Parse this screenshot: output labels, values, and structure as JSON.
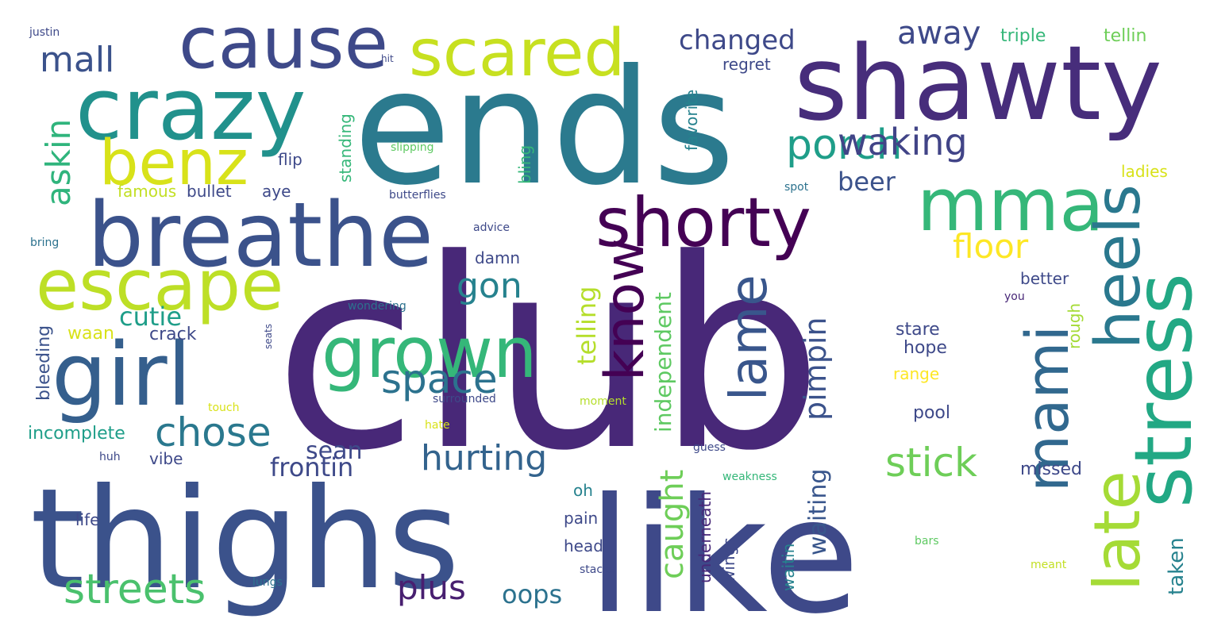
{
  "words": [
    {
      "text": "club",
      "weight": 1.0,
      "color": "#482878"
    },
    {
      "text": "ends",
      "weight": 0.62,
      "color": "#2b7a8e"
    },
    {
      "text": "like",
      "weight": 0.62,
      "color": "#3e4989"
    },
    {
      "text": "thighs",
      "weight": 0.55,
      "color": "#3b528b"
    },
    {
      "text": "shawty",
      "weight": 0.47,
      "color": "#472d7b"
    },
    {
      "text": "breathe",
      "weight": 0.4,
      "color": "#3b528b"
    },
    {
      "text": "girl",
      "weight": 0.38,
      "color": "#355f8d"
    },
    {
      "text": "crazy",
      "weight": 0.37,
      "color": "#21918c"
    },
    {
      "text": "stress",
      "weight": 0.35,
      "color": "#22a884"
    },
    {
      "text": "cause",
      "weight": 0.3,
      "color": "#3e4989"
    },
    {
      "text": "mma",
      "weight": 0.29,
      "color": "#35b779"
    },
    {
      "text": "escape",
      "weight": 0.27,
      "color": "#bddf26"
    },
    {
      "text": "grown",
      "weight": 0.27,
      "color": "#35b779"
    },
    {
      "text": "shorty",
      "weight": 0.26,
      "color": "#440154"
    },
    {
      "text": "scared",
      "weight": 0.26,
      "color": "#c7e020"
    },
    {
      "text": "late",
      "weight": 0.25,
      "color": "#a5db36"
    },
    {
      "text": "heels",
      "weight": 0.24,
      "color": "#2a788e"
    },
    {
      "text": "mami",
      "weight": 0.23,
      "color": "#31688e"
    },
    {
      "text": "benz",
      "weight": 0.24,
      "color": "#d8e219"
    },
    {
      "text": "know",
      "weight": 0.21,
      "color": "#440154"
    },
    {
      "text": "lame",
      "weight": 0.2,
      "color": "#39568c"
    },
    {
      "text": "streets",
      "weight": 0.16,
      "color": "#4ac16d"
    },
    {
      "text": "porch",
      "weight": 0.16,
      "color": "#1f9e89"
    },
    {
      "text": "space",
      "weight": 0.15,
      "color": "#2c728e"
    },
    {
      "text": "chose",
      "weight": 0.15,
      "color": "#2a788e"
    },
    {
      "text": "stick",
      "weight": 0.15,
      "color": "#6ece58"
    },
    {
      "text": "waking",
      "weight": 0.14,
      "color": "#414487"
    },
    {
      "text": "hurting",
      "weight": 0.13,
      "color": "#33638d"
    },
    {
      "text": "gon",
      "weight": 0.13,
      "color": "#26828e"
    },
    {
      "text": "mall",
      "weight": 0.13,
      "color": "#3b528b"
    },
    {
      "text": "askin",
      "weight": 0.12,
      "color": "#2fb47c"
    },
    {
      "text": "plus",
      "weight": 0.12,
      "color": "#481f70"
    },
    {
      "text": "floor",
      "weight": 0.12,
      "color": "#fde725"
    },
    {
      "text": "away",
      "weight": 0.11,
      "color": "#3e4989"
    },
    {
      "text": "caught",
      "weight": 0.11,
      "color": "#6ece58"
    },
    {
      "text": "pimpin",
      "weight": 0.11,
      "color": "#3b528b"
    },
    {
      "text": "changed",
      "weight": 0.1,
      "color": "#3e4989"
    },
    {
      "text": "cutie",
      "weight": 0.09,
      "color": "#1f9e89"
    },
    {
      "text": "telling",
      "weight": 0.09,
      "color": "#b5de2b"
    },
    {
      "text": "frontin",
      "weight": 0.09,
      "color": "#3e4989"
    },
    {
      "text": "sean",
      "weight": 0.09,
      "color": "#3e4989"
    },
    {
      "text": "waiting",
      "weight": 0.09,
      "color": "#39568c"
    },
    {
      "text": "beer",
      "weight": 0.08,
      "color": "#3b528b"
    },
    {
      "text": "oops",
      "weight": 0.08,
      "color": "#2c728e"
    },
    {
      "text": "independent",
      "weight": 0.08,
      "color": "#5ec962"
    },
    {
      "text": "taken",
      "weight": 0.07,
      "color": "#26828e"
    },
    {
      "text": "incomplete",
      "weight": 0.06,
      "color": "#1f9e89"
    },
    {
      "text": "missed",
      "weight": 0.06,
      "color": "#3e4989"
    },
    {
      "text": "stare",
      "weight": 0.06,
      "color": "#3e4989"
    },
    {
      "text": "hope",
      "weight": 0.06,
      "color": "#3e4989"
    },
    {
      "text": "bleeding",
      "weight": 0.06,
      "color": "#3b528b"
    },
    {
      "text": "crack",
      "weight": 0.06,
      "color": "#3e4989"
    },
    {
      "text": "pool",
      "weight": 0.06,
      "color": "#3e4989"
    },
    {
      "text": "waan",
      "weight": 0.06,
      "color": "#d8e219"
    },
    {
      "text": "triple",
      "weight": 0.06,
      "color": "#35b779"
    },
    {
      "text": "tellin",
      "weight": 0.06,
      "color": "#6ece58"
    },
    {
      "text": "regret",
      "weight": 0.06,
      "color": "#3e4989"
    },
    {
      "text": "flip",
      "weight": 0.06,
      "color": "#3e4989"
    },
    {
      "text": "bullet",
      "weight": 0.06,
      "color": "#3e4989"
    },
    {
      "text": "famous",
      "weight": 0.06,
      "color": "#c2df23"
    },
    {
      "text": "aye",
      "weight": 0.06,
      "color": "#3e4989"
    },
    {
      "text": "damn",
      "weight": 0.06,
      "color": "#3e4989"
    },
    {
      "text": "standing",
      "weight": 0.06,
      "color": "#35b779"
    },
    {
      "text": "favorite",
      "weight": 0.06,
      "color": "#26828e"
    },
    {
      "text": "ladies",
      "weight": 0.06,
      "color": "#d8e219"
    },
    {
      "text": "better",
      "weight": 0.06,
      "color": "#3e4989"
    },
    {
      "text": "rough",
      "weight": 0.06,
      "color": "#a5db36"
    },
    {
      "text": "range",
      "weight": 0.06,
      "color": "#fde725"
    },
    {
      "text": "bling",
      "weight": 0.06,
      "color": "#35b779"
    },
    {
      "text": "vibe",
      "weight": 0.06,
      "color": "#3e4989"
    },
    {
      "text": "life",
      "weight": 0.06,
      "color": "#3e4989"
    },
    {
      "text": "oh",
      "weight": 0.06,
      "color": "#26828e"
    },
    {
      "text": "pain",
      "weight": 0.06,
      "color": "#3e4989"
    },
    {
      "text": "head",
      "weight": 0.06,
      "color": "#3e4989"
    },
    {
      "text": "underneath",
      "weight": 0.06,
      "color": "#482878"
    },
    {
      "text": "wings",
      "weight": 0.06,
      "color": "#3e4989"
    },
    {
      "text": "waitin",
      "weight": 0.06,
      "color": "#26828e"
    },
    {
      "text": "butterflies",
      "weight": 0.04,
      "color": "#3e4989"
    },
    {
      "text": "slipping",
      "weight": 0.04,
      "color": "#5ec962"
    },
    {
      "text": "advice",
      "weight": 0.04,
      "color": "#3e4989"
    },
    {
      "text": "wondering",
      "weight": 0.04,
      "color": "#2c728e"
    },
    {
      "text": "surrounded",
      "weight": 0.04,
      "color": "#3e4989"
    },
    {
      "text": "touch",
      "weight": 0.04,
      "color": "#d8e219"
    },
    {
      "text": "hate",
      "weight": 0.04,
      "color": "#d8e219"
    },
    {
      "text": "moment",
      "weight": 0.04,
      "color": "#b5de2b"
    },
    {
      "text": "weakness",
      "weight": 0.04,
      "color": "#35b779"
    },
    {
      "text": "guess",
      "weight": 0.04,
      "color": "#3e4989"
    },
    {
      "text": "spot",
      "weight": 0.04,
      "color": "#2c728e"
    },
    {
      "text": "you",
      "weight": 0.04,
      "color": "#482878"
    },
    {
      "text": "justin",
      "weight": 0.04,
      "color": "#3e4989"
    },
    {
      "text": "hit",
      "weight": 0.03,
      "color": "#3e4989"
    },
    {
      "text": "bring",
      "weight": 0.04,
      "color": "#2c728e"
    },
    {
      "text": "seats",
      "weight": 0.03,
      "color": "#3e4989"
    },
    {
      "text": "huh",
      "weight": 0.04,
      "color": "#3e4989"
    },
    {
      "text": "lungs",
      "weight": 0.04,
      "color": "#2c728e"
    },
    {
      "text": "stacks",
      "weight": 0.04,
      "color": "#3e4989"
    },
    {
      "text": "bars",
      "weight": 0.04,
      "color": "#5ec962"
    },
    {
      "text": "meant",
      "weight": 0.04,
      "color": "#c2df23"
    }
  ]
}
